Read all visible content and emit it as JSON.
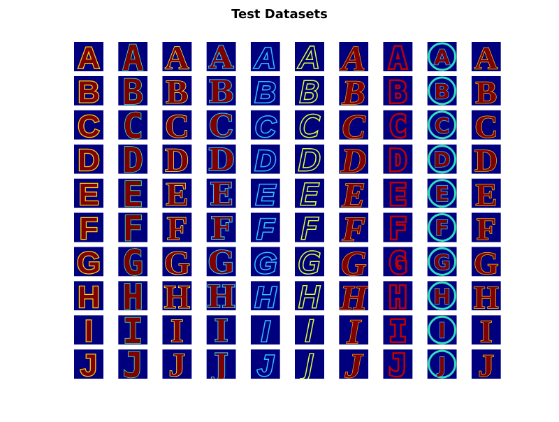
{
  "title": "Test Datasets",
  "letters": [
    "A",
    "B",
    "C",
    "D",
    "E",
    "F",
    "G",
    "H",
    "I",
    "J"
  ]
}
